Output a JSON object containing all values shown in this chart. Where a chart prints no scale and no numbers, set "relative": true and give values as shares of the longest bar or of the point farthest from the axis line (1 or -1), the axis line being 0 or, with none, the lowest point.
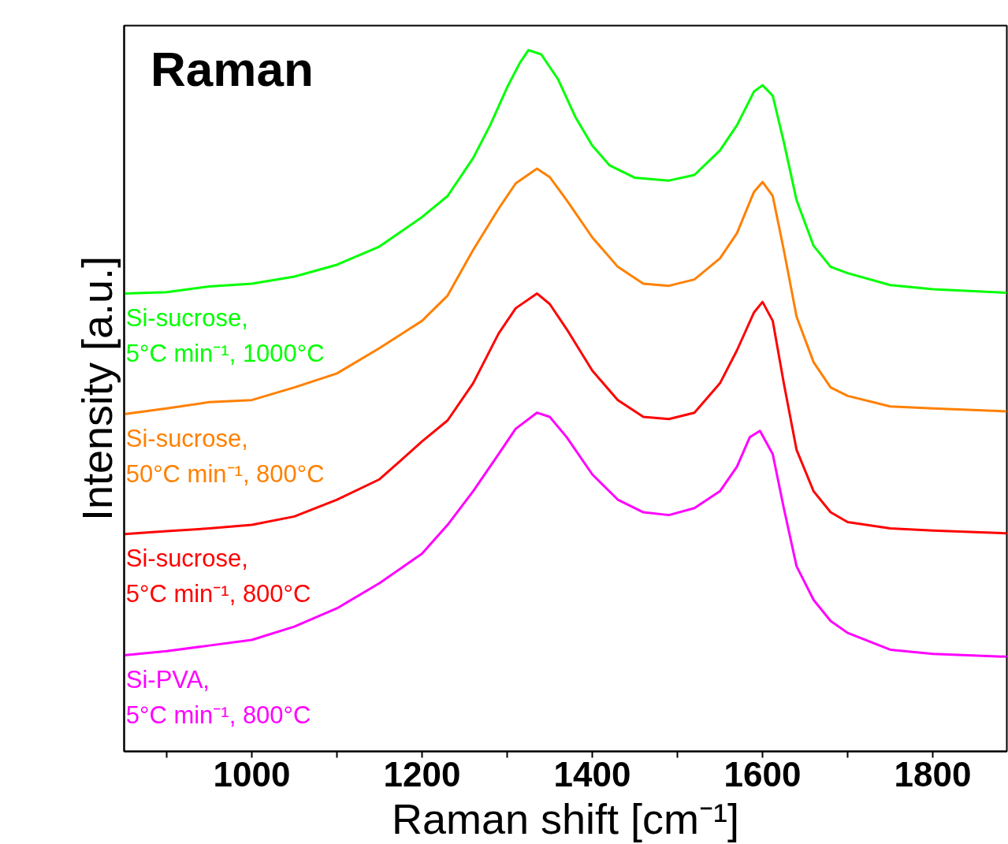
{
  "chart_data": {
    "type": "line",
    "title": "Raman",
    "xlabel": "Raman shift [cm⁻¹]",
    "ylabel": "Intensity [a.u.]",
    "relative": true,
    "tick_labels": "x",
    "grid": false,
    "xlim": [
      850,
      1887
    ],
    "xticks": [
      {
        "value": 900,
        "label": null
      },
      1000,
      {
        "value": 1100,
        "label": null
      },
      1200,
      {
        "value": 1300,
        "label": null
      },
      1400,
      {
        "value": 1500,
        "label": null
      },
      1600,
      {
        "value": 1700,
        "label": null
      },
      1800
    ],
    "series": [
      {
        "name": "Si-sucrose,\n5°C min⁻¹, 1000°C",
        "color": "#00ff00",
        "x": [
          850,
          900,
          950,
          1000,
          1050,
          1100,
          1150,
          1200,
          1230,
          1260,
          1280,
          1300,
          1315,
          1325,
          1340,
          1360,
          1380,
          1400,
          1420,
          1450,
          1490,
          1520,
          1550,
          1570,
          1590,
          1600,
          1612,
          1625,
          1640,
          1660,
          1680,
          1700,
          1750,
          1800,
          1887
        ],
        "values": [
          0.653,
          0.655,
          0.663,
          0.667,
          0.677,
          0.694,
          0.72,
          0.762,
          0.792,
          0.846,
          0.893,
          0.947,
          0.982,
          1.0,
          0.994,
          0.958,
          0.905,
          0.864,
          0.836,
          0.818,
          0.814,
          0.822,
          0.857,
          0.893,
          0.941,
          0.95,
          0.935,
          0.869,
          0.786,
          0.721,
          0.691,
          0.682,
          0.665,
          0.659,
          0.654
        ]
      },
      {
        "name": "Si-sucrose,\n50°C min⁻¹, 800°C",
        "color": "#ff8000",
        "x": [
          850,
          900,
          950,
          1000,
          1050,
          1100,
          1150,
          1200,
          1230,
          1260,
          1290,
          1310,
          1335,
          1350,
          1370,
          1400,
          1430,
          1460,
          1490,
          1520,
          1550,
          1570,
          1590,
          1600,
          1612,
          1625,
          1640,
          1660,
          1680,
          1700,
          1750,
          1800,
          1887
        ],
        "values": [
          0.481,
          0.489,
          0.498,
          0.501,
          0.519,
          0.539,
          0.575,
          0.614,
          0.65,
          0.715,
          0.774,
          0.81,
          0.831,
          0.819,
          0.786,
          0.733,
          0.691,
          0.667,
          0.664,
          0.673,
          0.703,
          0.739,
          0.798,
          0.812,
          0.792,
          0.715,
          0.62,
          0.555,
          0.519,
          0.507,
          0.492,
          0.489,
          0.485
        ]
      },
      {
        "name": "Si-sucrose,\n5°C min⁻¹, 800°C",
        "color": "#ff0000",
        "x": [
          850,
          900,
          950,
          1000,
          1050,
          1100,
          1150,
          1200,
          1230,
          1260,
          1290,
          1310,
          1335,
          1350,
          1370,
          1400,
          1430,
          1460,
          1490,
          1520,
          1550,
          1570,
          1590,
          1600,
          1612,
          1625,
          1640,
          1660,
          1680,
          1700,
          1750,
          1800,
          1887
        ],
        "values": [
          0.31,
          0.314,
          0.318,
          0.323,
          0.335,
          0.359,
          0.388,
          0.442,
          0.472,
          0.525,
          0.596,
          0.632,
          0.653,
          0.638,
          0.602,
          0.543,
          0.501,
          0.477,
          0.474,
          0.483,
          0.525,
          0.572,
          0.626,
          0.641,
          0.614,
          0.525,
          0.43,
          0.371,
          0.341,
          0.327,
          0.318,
          0.315,
          0.311
        ]
      },
      {
        "name": "Si-PVA,\n5°C min⁻¹, 800°C",
        "color": "#ff00ff",
        "x": [
          850,
          900,
          950,
          1000,
          1050,
          1100,
          1150,
          1200,
          1230,
          1260,
          1290,
          1310,
          1335,
          1350,
          1370,
          1400,
          1430,
          1460,
          1490,
          1520,
          1550,
          1570,
          1585,
          1597,
          1612,
          1625,
          1640,
          1660,
          1680,
          1700,
          1750,
          1800,
          1887
        ],
        "values": [
          0.137,
          0.143,
          0.151,
          0.159,
          0.178,
          0.204,
          0.24,
          0.282,
          0.323,
          0.371,
          0.424,
          0.46,
          0.483,
          0.477,
          0.448,
          0.395,
          0.359,
          0.341,
          0.337,
          0.347,
          0.371,
          0.406,
          0.448,
          0.457,
          0.424,
          0.347,
          0.264,
          0.216,
          0.186,
          0.169,
          0.145,
          0.139,
          0.135
        ]
      }
    ]
  }
}
